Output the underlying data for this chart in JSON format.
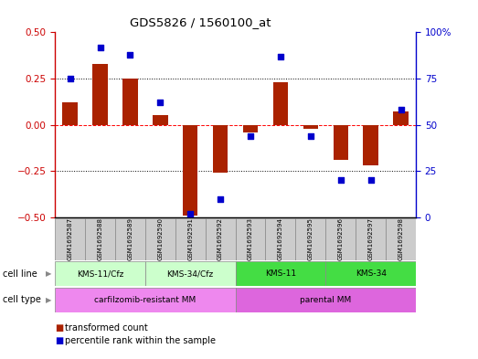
{
  "title": "GDS5826 / 1560100_at",
  "samples": [
    "GSM1692587",
    "GSM1692588",
    "GSM1692589",
    "GSM1692590",
    "GSM1692591",
    "GSM1692592",
    "GSM1692593",
    "GSM1692594",
    "GSM1692595",
    "GSM1692596",
    "GSM1692597",
    "GSM1692598"
  ],
  "transformed_count": [
    0.12,
    0.33,
    0.25,
    0.05,
    -0.49,
    -0.26,
    -0.04,
    0.23,
    -0.02,
    -0.19,
    -0.22,
    0.07
  ],
  "percentile_rank": [
    75,
    92,
    88,
    62,
    2,
    10,
    44,
    87,
    44,
    20,
    20,
    58
  ],
  "cell_line_groups": [
    {
      "label": "KMS-11/Cfz",
      "start": 0,
      "end": 3,
      "color": "#ccffcc"
    },
    {
      "label": "KMS-34/Cfz",
      "start": 3,
      "end": 6,
      "color": "#ccffcc"
    },
    {
      "label": "KMS-11",
      "start": 6,
      "end": 9,
      "color": "#44dd44"
    },
    {
      "label": "KMS-34",
      "start": 9,
      "end": 12,
      "color": "#44dd44"
    }
  ],
  "cell_type_groups": [
    {
      "label": "carfilzomib-resistant MM",
      "start": 0,
      "end": 6,
      "color": "#ee88ee"
    },
    {
      "label": "parental MM",
      "start": 6,
      "end": 12,
      "color": "#ee88ee"
    }
  ],
  "bar_color": "#aa2200",
  "dot_color": "#0000cc",
  "sample_box_color": "#cccccc",
  "ylim_left": [
    -0.5,
    0.5
  ],
  "ylim_right": [
    0,
    100
  ],
  "yticks_left": [
    -0.5,
    -0.25,
    0.0,
    0.25,
    0.5
  ],
  "yticks_right": [
    0,
    25,
    50,
    75,
    100
  ]
}
